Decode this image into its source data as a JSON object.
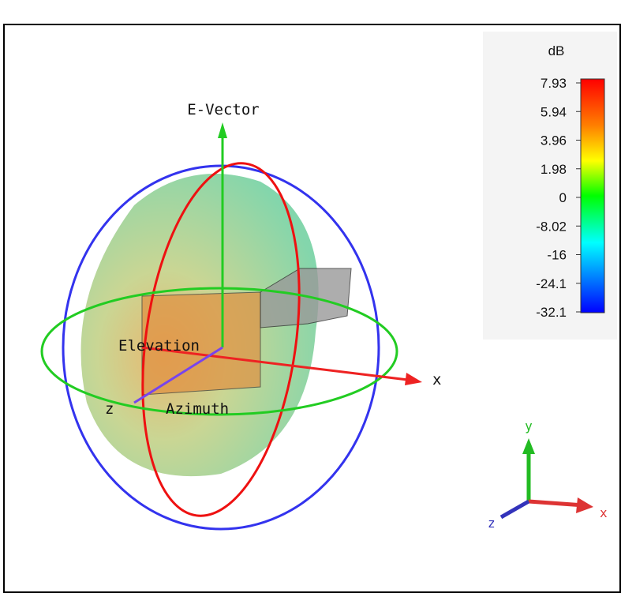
{
  "colorbar": {
    "unit": "dB",
    "ticks": [
      7.93,
      5.94,
      3.96,
      1.98,
      0,
      -8.02,
      -16,
      -24.1,
      -32.1
    ]
  },
  "labels": {
    "e_vector": "E-Vector",
    "elevation": "Elevation",
    "azimuth": "Azimuth",
    "x_axis": "x",
    "z_axis": "z"
  },
  "triad": {
    "y": "y",
    "z": "z",
    "x": "x"
  }
}
